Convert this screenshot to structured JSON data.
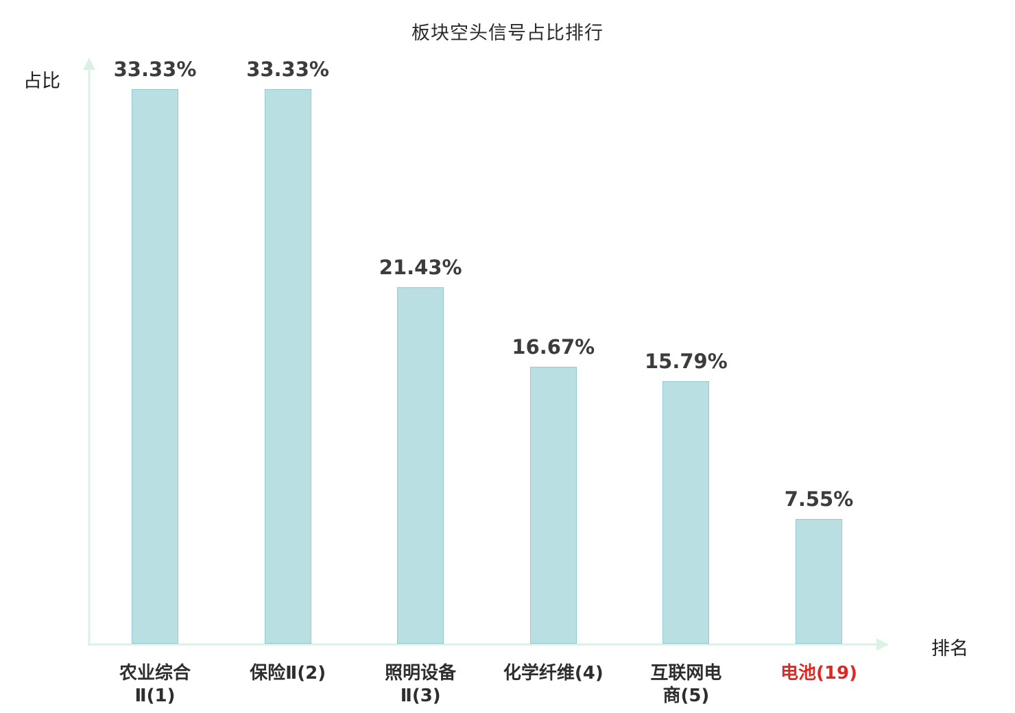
{
  "title": "板块空头信号占比排行",
  "y_axis_label": "占比",
  "x_axis_label": "排名",
  "chart_data": {
    "type": "bar",
    "title": "板块空头信号占比排行",
    "xlabel": "排名",
    "ylabel": "占比",
    "ylim": [
      0,
      35
    ],
    "grid": false,
    "legend": "none",
    "categories": [
      "农业综合Ⅱ(1)",
      "保险Ⅱ(2)",
      "照明设备Ⅱ(3)",
      "化学纤维(4)",
      "互联网电商(5)",
      "电池(19)"
    ],
    "category_lines": [
      [
        "农业综合",
        "Ⅱ(1)"
      ],
      [
        "保险Ⅱ(2)"
      ],
      [
        "照明设备",
        "Ⅱ(3)"
      ],
      [
        "化学纤维(4)"
      ],
      [
        "互联网电",
        "商(5)"
      ],
      [
        "电池(19)"
      ]
    ],
    "values": [
      33.33,
      33.33,
      21.43,
      16.67,
      15.79,
      7.55
    ],
    "value_labels": [
      "33.33%",
      "33.33%",
      "21.43%",
      "16.67%",
      "15.79%",
      "7.55%"
    ],
    "highlight_index": 5,
    "colors": {
      "bar_fill": "#b9dfe3",
      "bar_border": "#93cad1",
      "axis": "#d9f2e4",
      "value_label": "#3c3c3c",
      "category_label": "#2e2e2e",
      "highlight_label": "#e02722"
    }
  }
}
